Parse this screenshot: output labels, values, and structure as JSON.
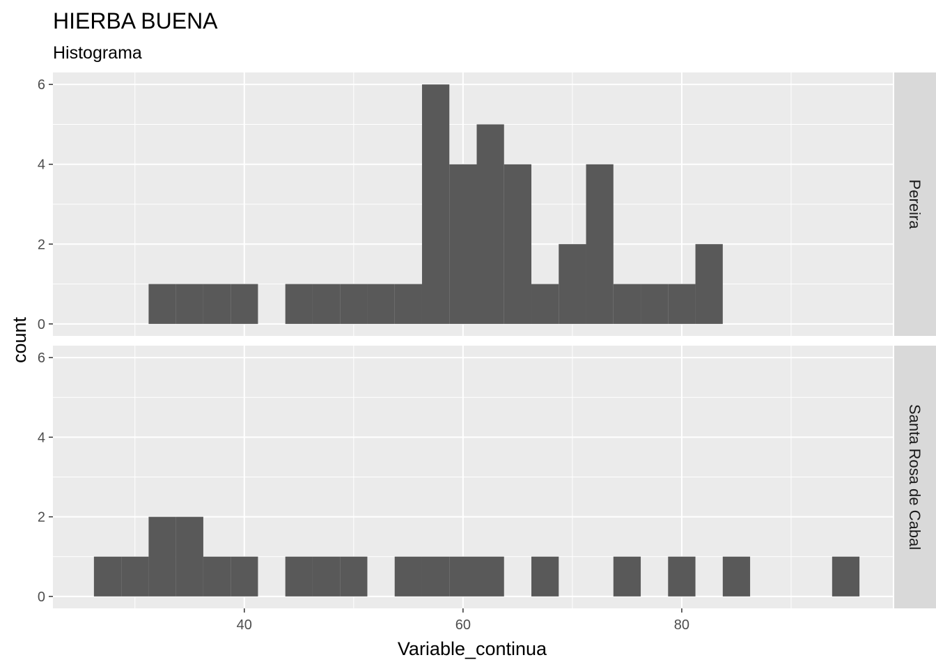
{
  "chart_data": {
    "type": "histogram",
    "title": "HIERBA BUENA",
    "subtitle": "Histograma",
    "xlabel": "Variable_continua",
    "ylabel": "count",
    "xlim": [
      22.5,
      99.3
    ],
    "ylim": [
      -0.3,
      6.3
    ],
    "x_ticks": [
      40,
      60,
      80
    ],
    "y_ticks": [
      0,
      2,
      4,
      6
    ],
    "bin_width": 2.5,
    "facet_strip": "right",
    "grid": true,
    "colors": {
      "panel_background": "#ebebeb",
      "grid": "#ffffff",
      "bar_fill": "#595959",
      "strip_background": "#d9d9d9"
    },
    "facets": [
      {
        "name": "Pereira",
        "bins": [
          {
            "start": 31.25,
            "end": 33.75,
            "count": 1
          },
          {
            "start": 33.75,
            "end": 36.25,
            "count": 1
          },
          {
            "start": 36.25,
            "end": 38.75,
            "count": 1
          },
          {
            "start": 38.75,
            "end": 41.25,
            "count": 1
          },
          {
            "start": 43.75,
            "end": 46.25,
            "count": 1
          },
          {
            "start": 46.25,
            "end": 48.75,
            "count": 1
          },
          {
            "start": 48.75,
            "end": 51.25,
            "count": 1
          },
          {
            "start": 51.25,
            "end": 53.75,
            "count": 1
          },
          {
            "start": 53.75,
            "end": 56.25,
            "count": 1
          },
          {
            "start": 56.25,
            "end": 58.75,
            "count": 6
          },
          {
            "start": 58.75,
            "end": 61.25,
            "count": 4
          },
          {
            "start": 61.25,
            "end": 63.75,
            "count": 5
          },
          {
            "start": 63.75,
            "end": 66.25,
            "count": 4
          },
          {
            "start": 66.25,
            "end": 68.75,
            "count": 1
          },
          {
            "start": 68.75,
            "end": 71.25,
            "count": 2
          },
          {
            "start": 71.25,
            "end": 73.75,
            "count": 4
          },
          {
            "start": 73.75,
            "end": 76.25,
            "count": 1
          },
          {
            "start": 76.25,
            "end": 78.75,
            "count": 1
          },
          {
            "start": 78.75,
            "end": 81.25,
            "count": 1
          },
          {
            "start": 81.25,
            "end": 83.75,
            "count": 2
          }
        ]
      },
      {
        "name": "Santa Rosa de Cabal",
        "bins": [
          {
            "start": 26.25,
            "end": 28.75,
            "count": 1
          },
          {
            "start": 28.75,
            "end": 31.25,
            "count": 1
          },
          {
            "start": 31.25,
            "end": 33.75,
            "count": 2
          },
          {
            "start": 33.75,
            "end": 36.25,
            "count": 2
          },
          {
            "start": 36.25,
            "end": 38.75,
            "count": 1
          },
          {
            "start": 38.75,
            "end": 41.25,
            "count": 1
          },
          {
            "start": 43.75,
            "end": 46.25,
            "count": 1
          },
          {
            "start": 46.25,
            "end": 48.75,
            "count": 1
          },
          {
            "start": 48.75,
            "end": 51.25,
            "count": 1
          },
          {
            "start": 53.75,
            "end": 56.25,
            "count": 1
          },
          {
            "start": 56.25,
            "end": 58.75,
            "count": 1
          },
          {
            "start": 58.75,
            "end": 61.25,
            "count": 1
          },
          {
            "start": 61.25,
            "end": 63.75,
            "count": 1
          },
          {
            "start": 66.25,
            "end": 68.75,
            "count": 1
          },
          {
            "start": 73.75,
            "end": 76.25,
            "count": 1
          },
          {
            "start": 78.75,
            "end": 81.25,
            "count": 1
          },
          {
            "start": 83.75,
            "end": 86.25,
            "count": 1
          },
          {
            "start": 93.75,
            "end": 96.25,
            "count": 1
          }
        ]
      }
    ]
  }
}
